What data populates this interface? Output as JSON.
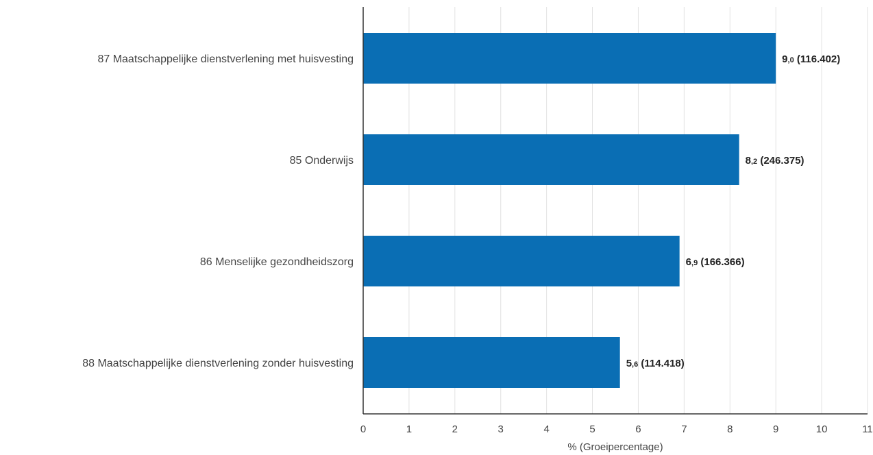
{
  "chart_data": {
    "type": "bar",
    "orientation": "horizontal",
    "categories": [
      "87 Maatschappelijke dienstverlening met huisvesting",
      "85 Onderwijs",
      "86 Menselijke gezondheidszorg",
      "88 Maatschappelijke dienstverlening zonder huisvesting"
    ],
    "values": [
      9.0,
      8.2,
      6.9,
      5.6
    ],
    "data_labels": [
      {
        "int": "9",
        "dec": ",0",
        "rest": " (116.402)"
      },
      {
        "int": "8",
        "dec": ",2",
        "rest": " (246.375)"
      },
      {
        "int": "6",
        "dec": ",9",
        "rest": " (166.366)"
      },
      {
        "int": "5",
        "dec": ",6",
        "rest": " (114.418)"
      }
    ],
    "xlabel": "% (Groeipercentage)",
    "ylabel": "",
    "xlim": [
      0,
      11
    ],
    "xticks": [
      "0",
      "1",
      "2",
      "3",
      "4",
      "5",
      "6",
      "7",
      "8",
      "9",
      "10",
      "11"
    ],
    "grid": true,
    "bar_color": "#0a6eb4"
  }
}
